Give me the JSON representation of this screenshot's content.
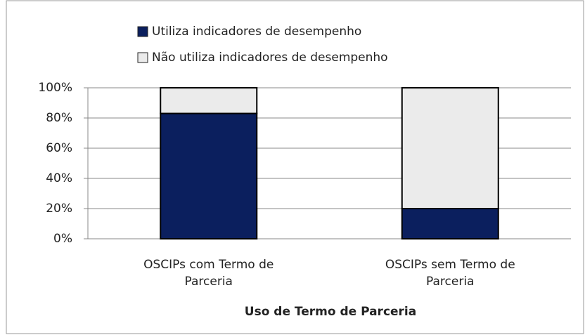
{
  "chart_data": {
    "type": "stacked_bar",
    "categories": [
      "OSCIPs com Termo de Parceria",
      "OSCIPs sem Termo de Parceria"
    ],
    "series": [
      {
        "name": "Utiliza indicadores de desempenho",
        "color": "#0b1f5e",
        "values": [
          83,
          20
        ]
      },
      {
        "name": "Não utiliza indicadores de desempenho",
        "color": "#ebebeb",
        "values": [
          17,
          80
        ]
      }
    ],
    "xlabel": "Uso de Termo de Parceria",
    "ylim": [
      0,
      100
    ],
    "yticks": [
      {
        "value": 0,
        "label": "0%"
      },
      {
        "value": 20,
        "label": "20%"
      },
      {
        "value": 40,
        "label": "40%"
      },
      {
        "value": 60,
        "label": "60%"
      },
      {
        "value": 80,
        "label": "80%"
      },
      {
        "value": 100,
        "label": "100%"
      }
    ],
    "grid": true,
    "legend": "top"
  }
}
